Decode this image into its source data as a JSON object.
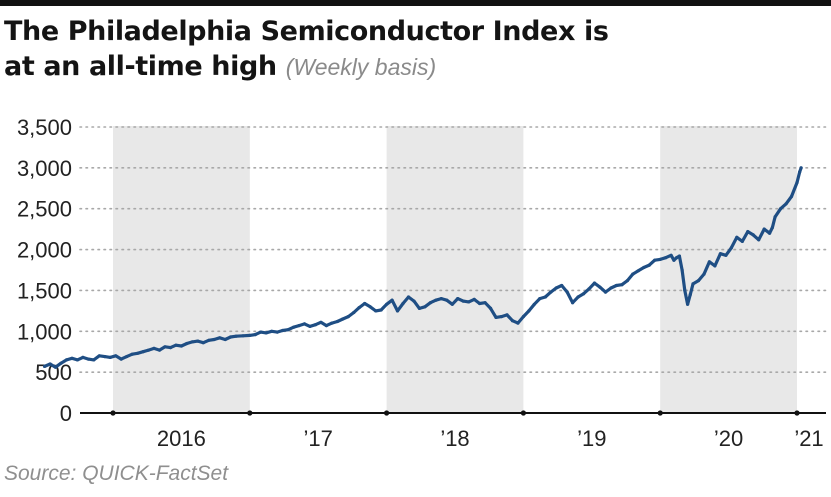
{
  "title_line1": "The Philadelphia Semiconductor Index is",
  "title_line2": "at an all-time high",
  "subtitle": "(Weekly basis)",
  "source": "Source: QUICK-FactSet",
  "colors": {
    "line": "#1f4e84",
    "band": "#e8e8e8",
    "grid": "#a8a8a8",
    "axis": "#111111"
  },
  "chart_data": {
    "type": "line",
    "title": "The Philadelphia Semiconductor Index is at an all-time high",
    "subtitle": "(Weekly basis)",
    "xlabel": "",
    "ylabel": "",
    "ylim": [
      0,
      3500
    ],
    "xlim": [
      2015.5,
      2021.05
    ],
    "yticks": [
      0,
      500,
      1000,
      1500,
      2000,
      2500,
      3000,
      3500
    ],
    "ytick_labels": [
      "0",
      "500",
      "1,000",
      "1,500",
      "2,000",
      "2,500",
      "3,000",
      "3,500"
    ],
    "xtick_labels": [
      "2016",
      "’17",
      "’18",
      "’19",
      "’20",
      "’21"
    ],
    "year_boundaries": [
      2016,
      2017,
      2018,
      2019,
      2020,
      2021
    ],
    "shaded_years": [
      2016,
      2018,
      2020
    ],
    "grid": "horizontal dotted",
    "series": [
      {
        "values": [
          [
            2015.5,
            570
          ],
          [
            2015.54,
            600
          ],
          [
            2015.58,
            560
          ],
          [
            2015.62,
            610
          ],
          [
            2015.66,
            650
          ],
          [
            2015.7,
            670
          ],
          [
            2015.74,
            650
          ],
          [
            2015.78,
            680
          ],
          [
            2015.82,
            660
          ],
          [
            2015.86,
            650
          ],
          [
            2015.9,
            700
          ],
          [
            2015.94,
            690
          ],
          [
            2015.98,
            680
          ],
          [
            2016.02,
            700
          ],
          [
            2016.06,
            660
          ],
          [
            2016.1,
            690
          ],
          [
            2016.14,
            720
          ],
          [
            2016.18,
            730
          ],
          [
            2016.22,
            750
          ],
          [
            2016.26,
            770
          ],
          [
            2016.3,
            790
          ],
          [
            2016.34,
            770
          ],
          [
            2016.38,
            810
          ],
          [
            2016.42,
            800
          ],
          [
            2016.46,
            830
          ],
          [
            2016.5,
            820
          ],
          [
            2016.54,
            850
          ],
          [
            2016.58,
            870
          ],
          [
            2016.62,
            880
          ],
          [
            2016.66,
            860
          ],
          [
            2016.7,
            890
          ],
          [
            2016.74,
            900
          ],
          [
            2016.78,
            920
          ],
          [
            2016.82,
            900
          ],
          [
            2016.86,
            930
          ],
          [
            2016.9,
            940
          ],
          [
            2016.95,
            945
          ],
          [
            2017.0,
            950
          ],
          [
            2017.04,
            960
          ],
          [
            2017.08,
            990
          ],
          [
            2017.12,
            980
          ],
          [
            2017.16,
            1000
          ],
          [
            2017.2,
            990
          ],
          [
            2017.24,
            1010
          ],
          [
            2017.28,
            1020
          ],
          [
            2017.32,
            1050
          ],
          [
            2017.36,
            1070
          ],
          [
            2017.4,
            1090
          ],
          [
            2017.44,
            1060
          ],
          [
            2017.48,
            1080
          ],
          [
            2017.52,
            1110
          ],
          [
            2017.56,
            1070
          ],
          [
            2017.6,
            1100
          ],
          [
            2017.64,
            1120
          ],
          [
            2017.68,
            1150
          ],
          [
            2017.72,
            1180
          ],
          [
            2017.76,
            1230
          ],
          [
            2017.8,
            1290
          ],
          [
            2017.84,
            1340
          ],
          [
            2017.88,
            1300
          ],
          [
            2017.92,
            1250
          ],
          [
            2017.96,
            1260
          ],
          [
            2018.0,
            1330
          ],
          [
            2018.04,
            1380
          ],
          [
            2018.08,
            1250
          ],
          [
            2018.12,
            1340
          ],
          [
            2018.16,
            1420
          ],
          [
            2018.2,
            1370
          ],
          [
            2018.24,
            1280
          ],
          [
            2018.28,
            1300
          ],
          [
            2018.32,
            1350
          ],
          [
            2018.36,
            1380
          ],
          [
            2018.4,
            1400
          ],
          [
            2018.44,
            1380
          ],
          [
            2018.48,
            1330
          ],
          [
            2018.52,
            1400
          ],
          [
            2018.56,
            1370
          ],
          [
            2018.6,
            1360
          ],
          [
            2018.64,
            1390
          ],
          [
            2018.68,
            1340
          ],
          [
            2018.72,
            1350
          ],
          [
            2018.76,
            1280
          ],
          [
            2018.8,
            1170
          ],
          [
            2018.84,
            1180
          ],
          [
            2018.88,
            1200
          ],
          [
            2018.92,
            1130
          ],
          [
            2018.96,
            1100
          ],
          [
            2019.0,
            1180
          ],
          [
            2019.04,
            1250
          ],
          [
            2019.08,
            1330
          ],
          [
            2019.12,
            1400
          ],
          [
            2019.16,
            1420
          ],
          [
            2019.2,
            1480
          ],
          [
            2019.24,
            1530
          ],
          [
            2019.28,
            1560
          ],
          [
            2019.32,
            1480
          ],
          [
            2019.36,
            1350
          ],
          [
            2019.4,
            1420
          ],
          [
            2019.44,
            1460
          ],
          [
            2019.48,
            1520
          ],
          [
            2019.52,
            1590
          ],
          [
            2019.56,
            1540
          ],
          [
            2019.6,
            1480
          ],
          [
            2019.64,
            1530
          ],
          [
            2019.68,
            1560
          ],
          [
            2019.72,
            1570
          ],
          [
            2019.76,
            1620
          ],
          [
            2019.8,
            1700
          ],
          [
            2019.84,
            1740
          ],
          [
            2019.88,
            1780
          ],
          [
            2019.92,
            1810
          ],
          [
            2019.96,
            1870
          ],
          [
            2020.0,
            1880
          ],
          [
            2020.04,
            1900
          ],
          [
            2020.08,
            1930
          ],
          [
            2020.1,
            1870
          ],
          [
            2020.12,
            1900
          ],
          [
            2020.14,
            1920
          ],
          [
            2020.16,
            1750
          ],
          [
            2020.18,
            1500
          ],
          [
            2020.2,
            1330
          ],
          [
            2020.22,
            1450
          ],
          [
            2020.24,
            1580
          ],
          [
            2020.28,
            1620
          ],
          [
            2020.32,
            1700
          ],
          [
            2020.36,
            1850
          ],
          [
            2020.4,
            1800
          ],
          [
            2020.44,
            1950
          ],
          [
            2020.48,
            1930
          ],
          [
            2020.52,
            2020
          ],
          [
            2020.56,
            2150
          ],
          [
            2020.6,
            2100
          ],
          [
            2020.64,
            2220
          ],
          [
            2020.68,
            2180
          ],
          [
            2020.72,
            2120
          ],
          [
            2020.76,
            2250
          ],
          [
            2020.8,
            2200
          ],
          [
            2020.82,
            2270
          ],
          [
            2020.84,
            2400
          ],
          [
            2020.88,
            2500
          ],
          [
            2020.92,
            2560
          ],
          [
            2020.96,
            2650
          ],
          [
            2021.0,
            2820
          ],
          [
            2021.02,
            2950
          ],
          [
            2021.03,
            3000
          ]
        ]
      }
    ]
  }
}
